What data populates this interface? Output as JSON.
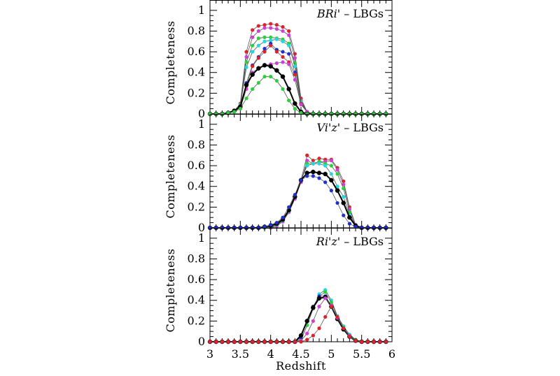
{
  "chart_data": [
    {
      "type": "line",
      "panel": "top",
      "annotation": {
        "italic": "BRi'",
        "rest": " – LBGs"
      },
      "ylabel": "Completeness",
      "xlabel": "",
      "xlim": [
        3,
        6
      ],
      "ylim": [
        0,
        1
      ],
      "x_ticks": [
        "3",
        "3.5",
        "4",
        "4.5",
        "5",
        "5.5",
        "6"
      ],
      "y_ticks": [
        "0",
        "0.2",
        "0.4",
        "0.6",
        "0.8",
        "1"
      ],
      "show_x_tick_labels": false,
      "x": [
        3.0,
        3.1,
        3.2,
        3.3,
        3.4,
        3.5,
        3.6,
        3.7,
        3.8,
        3.9,
        4.0,
        4.1,
        4.2,
        4.3,
        4.4,
        4.5,
        4.6,
        4.7,
        4.8,
        4.9,
        5.0,
        5.1,
        5.2,
        5.3,
        5.4,
        5.5,
        5.6,
        5.7,
        5.8,
        5.9
      ],
      "series": [
        {
          "color": "#e0202a",
          "thick": false,
          "values": [
            0,
            0,
            0,
            0.01,
            0.03,
            0.1,
            0.6,
            0.81,
            0.85,
            0.86,
            0.87,
            0.86,
            0.84,
            0.8,
            0.58,
            0.15,
            0.02,
            0,
            0,
            0,
            0,
            0,
            0,
            0,
            0,
            0,
            0,
            0,
            0,
            0
          ]
        },
        {
          "color": "#d040d8",
          "thick": false,
          "values": [
            0,
            0,
            0,
            0.01,
            0.03,
            0.09,
            0.55,
            0.74,
            0.8,
            0.83,
            0.83,
            0.82,
            0.8,
            0.76,
            0.54,
            0.13,
            0.02,
            0,
            0,
            0,
            0,
            0,
            0,
            0,
            0,
            0,
            0,
            0,
            0,
            0
          ]
        },
        {
          "color": "#2ad03a",
          "thick": false,
          "values": [
            0,
            0,
            0,
            0.01,
            0.03,
            0.09,
            0.5,
            0.66,
            0.73,
            0.74,
            0.74,
            0.73,
            0.72,
            0.68,
            0.49,
            0.12,
            0.02,
            0,
            0,
            0,
            0,
            0,
            0,
            0,
            0,
            0,
            0,
            0,
            0,
            0
          ]
        },
        {
          "color": "#20d8e0",
          "thick": false,
          "values": [
            0,
            0,
            0,
            0.01,
            0.03,
            0.08,
            0.45,
            0.6,
            0.66,
            0.7,
            0.71,
            0.72,
            0.7,
            0.66,
            0.46,
            0.11,
            0.02,
            0,
            0,
            0,
            0,
            0,
            0,
            0,
            0,
            0,
            0,
            0,
            0,
            0
          ]
        },
        {
          "color": "#2030d0",
          "thick": false,
          "values": [
            0,
            0,
            0,
            0.01,
            0.03,
            0.07,
            0.3,
            0.47,
            0.55,
            0.63,
            0.68,
            0.62,
            0.6,
            0.58,
            0.4,
            0.1,
            0.02,
            0,
            0,
            0,
            0,
            0,
            0,
            0,
            0,
            0,
            0,
            0,
            0,
            0
          ]
        },
        {
          "color": "#e0202a",
          "thick": false,
          "values": [
            0,
            0,
            0,
            0.01,
            0.03,
            0.07,
            0.27,
            0.46,
            0.54,
            0.6,
            0.66,
            0.6,
            0.55,
            0.5,
            0.38,
            0.1,
            0.02,
            0,
            0,
            0,
            0,
            0,
            0,
            0,
            0,
            0,
            0,
            0,
            0,
            0
          ]
        },
        {
          "color": "#d040d8",
          "thick": false,
          "values": [
            0,
            0,
            0,
            0.01,
            0.03,
            0.06,
            0.24,
            0.4,
            0.44,
            0.47,
            0.48,
            0.49,
            0.5,
            0.48,
            0.33,
            0.09,
            0.02,
            0,
            0,
            0,
            0,
            0,
            0,
            0,
            0,
            0,
            0,
            0,
            0,
            0
          ]
        },
        {
          "color": "#000000",
          "thick": true,
          "values": [
            0,
            0,
            0,
            0.01,
            0.03,
            0.07,
            0.28,
            0.38,
            0.44,
            0.47,
            0.46,
            0.42,
            0.36,
            0.24,
            0.1,
            0.02,
            0,
            0,
            0,
            0,
            0,
            0,
            0,
            0,
            0,
            0,
            0,
            0,
            0,
            0
          ]
        },
        {
          "color": "#2ad03a",
          "thick": false,
          "values": [
            0,
            0,
            0,
            0.01,
            0.02,
            0.05,
            0.15,
            0.24,
            0.3,
            0.36,
            0.36,
            0.32,
            0.24,
            0.13,
            0.05,
            0.01,
            0,
            0,
            0,
            0,
            0,
            0,
            0,
            0,
            0,
            0,
            0,
            0,
            0,
            0
          ]
        }
      ]
    },
    {
      "type": "line",
      "panel": "middle",
      "annotation": {
        "italic": "Vi'z'",
        "rest": " – LBGs"
      },
      "ylabel": "Completeness",
      "xlabel": "",
      "xlim": [
        3,
        6
      ],
      "ylim": [
        0,
        1
      ],
      "x_ticks": [
        "3",
        "3.5",
        "4",
        "4.5",
        "5",
        "5.5",
        "6"
      ],
      "y_ticks": [
        "0",
        "0.2",
        "0.4",
        "0.6",
        "0.8",
        "1"
      ],
      "show_x_tick_labels": false,
      "x": [
        3.0,
        3.1,
        3.2,
        3.3,
        3.4,
        3.5,
        3.6,
        3.7,
        3.8,
        3.9,
        4.0,
        4.1,
        4.2,
        4.3,
        4.4,
        4.5,
        4.6,
        4.7,
        4.8,
        4.9,
        5.0,
        5.1,
        5.2,
        5.3,
        5.4,
        5.5,
        5.6,
        5.7,
        5.8,
        5.9
      ],
      "series": [
        {
          "color": "#e0202a",
          "thick": false,
          "values": [
            0,
            0,
            0,
            0,
            0,
            0,
            0,
            0,
            0,
            0,
            0,
            0.02,
            0.06,
            0.16,
            0.3,
            0.46,
            0.7,
            0.65,
            0.67,
            0.66,
            0.66,
            0.58,
            0.45,
            0.2,
            0.03,
            0,
            0,
            0,
            0,
            0
          ]
        },
        {
          "color": "#d040d8",
          "thick": false,
          "values": [
            0,
            0,
            0,
            0,
            0,
            0,
            0,
            0,
            0,
            0,
            0,
            0.02,
            0.06,
            0.15,
            0.28,
            0.44,
            0.65,
            0.62,
            0.64,
            0.64,
            0.65,
            0.56,
            0.42,
            0.18,
            0.03,
            0,
            0,
            0,
            0,
            0
          ]
        },
        {
          "color": "#2ad03a",
          "thick": false,
          "values": [
            0,
            0,
            0,
            0,
            0,
            0,
            0,
            0,
            0,
            0,
            0.01,
            0.03,
            0.07,
            0.16,
            0.3,
            0.46,
            0.62,
            0.62,
            0.64,
            0.62,
            0.6,
            0.52,
            0.38,
            0.15,
            0.02,
            0,
            0,
            0,
            0,
            0
          ]
        },
        {
          "color": "#20d8e0",
          "thick": false,
          "values": [
            0,
            0,
            0,
            0,
            0,
            0,
            0,
            0,
            0,
            0,
            0.01,
            0.03,
            0.07,
            0.16,
            0.3,
            0.46,
            0.6,
            0.62,
            0.62,
            0.6,
            0.52,
            0.4,
            0.3,
            0.12,
            0.02,
            0,
            0,
            0,
            0,
            0
          ]
        },
        {
          "color": "#000000",
          "thick": true,
          "values": [
            0,
            0,
            0,
            0,
            0,
            0,
            0,
            0,
            0,
            0.01,
            0.02,
            0.04,
            0.08,
            0.17,
            0.3,
            0.46,
            0.53,
            0.54,
            0.53,
            0.52,
            0.46,
            0.36,
            0.24,
            0.1,
            0.02,
            0,
            0,
            0,
            0,
            0
          ]
        },
        {
          "color": "#2030d0",
          "thick": false,
          "values": [
            0,
            0,
            0,
            0,
            0,
            0,
            0,
            0,
            0,
            0.01,
            0.03,
            0.05,
            0.1,
            0.2,
            0.32,
            0.46,
            0.5,
            0.5,
            0.48,
            0.44,
            0.36,
            0.24,
            0.12,
            0.04,
            0.01,
            0,
            0,
            0,
            0,
            0
          ]
        }
      ]
    },
    {
      "type": "line",
      "panel": "bottom",
      "annotation": {
        "italic": "Ri'z'",
        "rest": " – LBGs"
      },
      "ylabel": "Completeness",
      "xlabel": "Redshift",
      "xlim": [
        3,
        6
      ],
      "ylim": [
        0,
        1
      ],
      "x_ticks": [
        "3",
        "3.5",
        "4",
        "4.5",
        "5",
        "5.5",
        "6"
      ],
      "y_ticks": [
        "0",
        "0.2",
        "0.4",
        "0.6",
        "0.8",
        "1"
      ],
      "show_x_tick_labels": true,
      "x": [
        3.0,
        3.1,
        3.2,
        3.3,
        3.4,
        3.5,
        3.6,
        3.7,
        3.8,
        3.9,
        4.0,
        4.1,
        4.2,
        4.3,
        4.4,
        4.5,
        4.6,
        4.7,
        4.8,
        4.9,
        5.0,
        5.1,
        5.2,
        5.3,
        5.4,
        5.5,
        5.6,
        5.7,
        5.8,
        5.9
      ],
      "series": [
        {
          "color": "#20d8e0",
          "thick": false,
          "values": [
            0,
            0,
            0,
            0,
            0,
            0,
            0,
            0,
            0,
            0,
            0,
            0,
            0,
            0,
            0,
            0.02,
            0.16,
            0.32,
            0.46,
            0.5,
            0.4,
            0.25,
            0.15,
            0.07,
            0.02,
            0,
            0,
            0,
            0,
            0
          ]
        },
        {
          "color": "#2ad03a",
          "thick": false,
          "values": [
            0,
            0,
            0,
            0,
            0,
            0,
            0,
            0,
            0,
            0,
            0,
            0,
            0,
            0,
            0,
            0.02,
            0.16,
            0.32,
            0.44,
            0.48,
            0.38,
            0.24,
            0.14,
            0.06,
            0.02,
            0,
            0,
            0,
            0,
            0
          ]
        },
        {
          "color": "#2030d0",
          "thick": false,
          "values": [
            0,
            0,
            0,
            0,
            0,
            0,
            0,
            0,
            0,
            0,
            0,
            0,
            0,
            0,
            0,
            0.04,
            0.2,
            0.34,
            0.44,
            0.44,
            0.34,
            0.22,
            0.12,
            0.05,
            0.01,
            0,
            0,
            0,
            0,
            0
          ]
        },
        {
          "color": "#000000",
          "thick": true,
          "values": [
            0,
            0,
            0,
            0,
            0,
            0,
            0,
            0,
            0,
            0,
            0,
            0,
            0,
            0,
            0,
            0.06,
            0.2,
            0.33,
            0.42,
            0.43,
            0.34,
            0.22,
            0.12,
            0.05,
            0.01,
            0,
            0,
            0,
            0,
            0
          ]
        },
        {
          "color": "#d040d8",
          "thick": false,
          "values": [
            0,
            0,
            0,
            0,
            0,
            0,
            0,
            0,
            0,
            0,
            0,
            0,
            0,
            0,
            0,
            0.01,
            0.08,
            0.2,
            0.34,
            0.42,
            0.35,
            0.23,
            0.13,
            0.06,
            0.01,
            0,
            0,
            0,
            0,
            0
          ]
        },
        {
          "color": "#e0202a",
          "thick": false,
          "values": [
            0,
            0,
            0,
            0,
            0,
            0,
            0,
            0,
            0,
            0,
            0,
            0,
            0,
            0,
            0,
            0,
            0.02,
            0.06,
            0.13,
            0.24,
            0.34,
            0.24,
            0.13,
            0.05,
            0.01,
            0,
            0,
            0,
            0,
            0
          ]
        }
      ]
    }
  ]
}
